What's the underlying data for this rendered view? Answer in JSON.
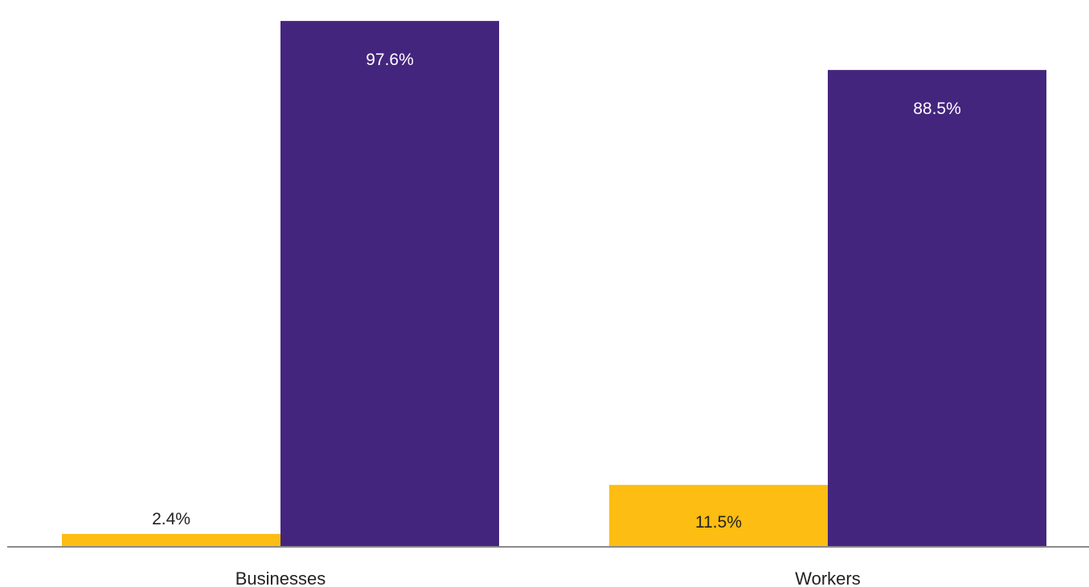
{
  "chart_data": {
    "type": "bar",
    "categories": [
      "Businesses",
      "Workers"
    ],
    "series": [
      {
        "values": [
          2.4,
          11.5
        ],
        "value_labels": [
          "2.4%",
          "11.5%"
        ],
        "color": "#FDBD12"
      },
      {
        "values": [
          97.6,
          88.5
        ],
        "value_labels": [
          "97.6%",
          "88.5%"
        ],
        "color": "#44257E"
      }
    ],
    "ylim": [
      0,
      100
    ],
    "grid": false,
    "legend": "none",
    "title": "",
    "xlabel": "",
    "ylabel": ""
  }
}
